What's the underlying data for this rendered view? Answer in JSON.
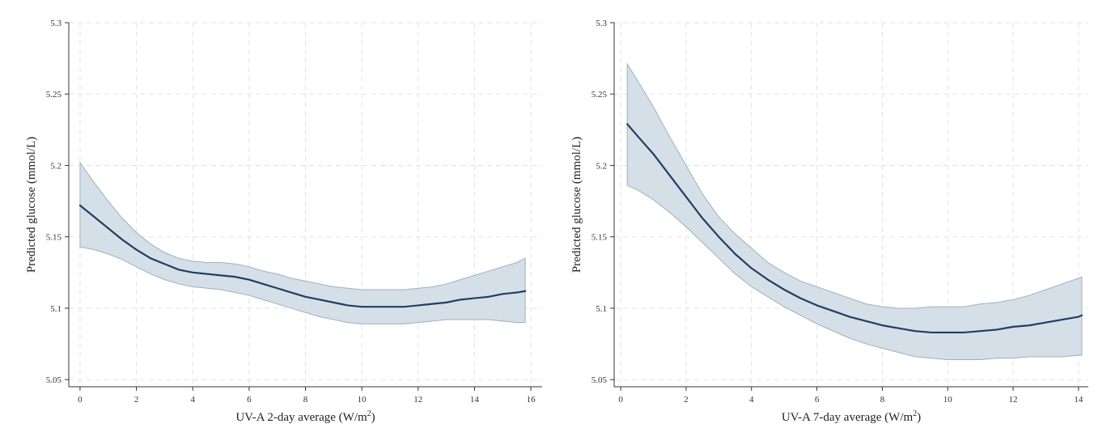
{
  "chart_data": [
    {
      "type": "line",
      "title": "",
      "xlabel": "UV-A 2-day average (W/m",
      "xlabel_sup": "2",
      "xlabel_tail": ")",
      "ylabel": "Predicted glucose (mmol/L)",
      "xlim": [
        -0.4,
        16.4
      ],
      "ylim": [
        5.045,
        5.3
      ],
      "xticks": [
        0,
        2,
        4,
        6,
        8,
        10,
        12,
        14,
        16
      ],
      "yticks": [
        5.05,
        5.1,
        5.15,
        5.2,
        5.25,
        5.3
      ],
      "ytick_labels": [
        "5.05",
        "5.1",
        "5.15",
        "5.2",
        "5.25",
        "5.3"
      ],
      "grid": true,
      "line_color": "#1f3f63",
      "band_color": "#d5dfe8",
      "band_edge_color": "#9fb0c0",
      "series": [
        {
          "x": [
            0,
            0.5,
            1,
            1.5,
            2,
            2.5,
            3,
            3.5,
            4,
            4.5,
            5,
            5.5,
            6,
            6.5,
            7,
            7.5,
            8,
            8.5,
            9,
            9.5,
            10,
            10.5,
            11,
            11.5,
            12,
            12.5,
            13,
            13.5,
            14,
            14.5,
            15,
            15.5,
            15.8
          ],
          "y": [
            5.172,
            5.164,
            5.156,
            5.148,
            5.141,
            5.135,
            5.131,
            5.127,
            5.125,
            5.124,
            5.123,
            5.122,
            5.12,
            5.117,
            5.114,
            5.111,
            5.108,
            5.106,
            5.104,
            5.102,
            5.101,
            5.101,
            5.101,
            5.101,
            5.102,
            5.103,
            5.104,
            5.106,
            5.107,
            5.108,
            5.11,
            5.111,
            5.112
          ],
          "lower": [
            5.143,
            5.141,
            5.138,
            5.134,
            5.129,
            5.124,
            5.12,
            5.117,
            5.115,
            5.114,
            5.113,
            5.111,
            5.109,
            5.106,
            5.103,
            5.1,
            5.097,
            5.094,
            5.092,
            5.09,
            5.089,
            5.089,
            5.089,
            5.089,
            5.09,
            5.091,
            5.092,
            5.092,
            5.092,
            5.092,
            5.091,
            5.09,
            5.09
          ],
          "upper": [
            5.202,
            5.188,
            5.175,
            5.163,
            5.153,
            5.145,
            5.139,
            5.135,
            5.133,
            5.132,
            5.132,
            5.131,
            5.129,
            5.126,
            5.124,
            5.121,
            5.119,
            5.117,
            5.115,
            5.114,
            5.113,
            5.113,
            5.113,
            5.113,
            5.114,
            5.115,
            5.117,
            5.12,
            5.123,
            5.126,
            5.129,
            5.132,
            5.135
          ]
        }
      ]
    },
    {
      "type": "line",
      "title": "",
      "xlabel": "UV-A 7-day average (W/m",
      "xlabel_sup": "2",
      "xlabel_tail": ")",
      "ylabel": "Predicted glucose (mmol/L)",
      "xlim": [
        -0.2,
        14.3
      ],
      "ylim": [
        5.045,
        5.3
      ],
      "xticks": [
        0,
        2,
        4,
        6,
        8,
        10,
        12,
        14
      ],
      "yticks": [
        5.05,
        5.1,
        5.15,
        5.2,
        5.25,
        5.3
      ],
      "ytick_labels": [
        "5.05",
        "5.1",
        "5.15",
        "5.2",
        "5.25",
        "5.3"
      ],
      "grid": true,
      "line_color": "#1f3f63",
      "band_color": "#d5dfe8",
      "band_edge_color": "#9fb0c0",
      "series": [
        {
          "x": [
            0.2,
            0.5,
            1,
            1.5,
            2,
            2.5,
            3,
            3.5,
            4,
            4.5,
            5,
            5.5,
            6,
            6.5,
            7,
            7.5,
            8,
            8.5,
            9,
            9.5,
            10,
            10.5,
            11,
            11.5,
            12,
            12.5,
            13,
            13.5,
            14,
            14.1
          ],
          "y": [
            5.229,
            5.221,
            5.208,
            5.193,
            5.178,
            5.163,
            5.15,
            5.138,
            5.128,
            5.12,
            5.113,
            5.107,
            5.102,
            5.098,
            5.094,
            5.091,
            5.088,
            5.086,
            5.084,
            5.083,
            5.083,
            5.083,
            5.084,
            5.085,
            5.087,
            5.088,
            5.09,
            5.092,
            5.094,
            5.095
          ],
          "lower": [
            5.186,
            5.183,
            5.176,
            5.167,
            5.157,
            5.146,
            5.135,
            5.124,
            5.115,
            5.108,
            5.101,
            5.095,
            5.089,
            5.084,
            5.079,
            5.075,
            5.072,
            5.069,
            5.066,
            5.065,
            5.064,
            5.064,
            5.064,
            5.065,
            5.065,
            5.066,
            5.066,
            5.066,
            5.067,
            5.067
          ],
          "upper": [
            5.271,
            5.26,
            5.241,
            5.22,
            5.2,
            5.18,
            5.164,
            5.152,
            5.142,
            5.132,
            5.125,
            5.119,
            5.115,
            5.111,
            5.107,
            5.103,
            5.101,
            5.1,
            5.1,
            5.101,
            5.101,
            5.101,
            5.103,
            5.104,
            5.106,
            5.109,
            5.113,
            5.117,
            5.121,
            5.122
          ]
        }
      ]
    }
  ]
}
